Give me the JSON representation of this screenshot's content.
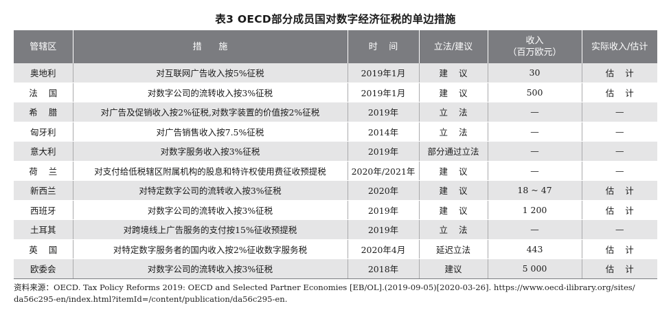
{
  "caption": "表3   OECD部分成员国对数字经济征税的单边措施",
  "headers": {
    "jurisdiction": "管辖区",
    "measure": "措      施",
    "time": "时    间",
    "legislation": "立法/建议",
    "revenue_line1": "收入",
    "revenue_line2": "（百万欧元）",
    "actual": "实际收入/估计"
  },
  "rows": [
    {
      "jurisdiction": "奥地利",
      "measure": "对互联网广告收入按5%征税",
      "time": "2019年1月",
      "legislation": "建    议",
      "revenue": "30",
      "actual": "估    计"
    },
    {
      "jurisdiction": "法    国",
      "measure": "对数字公司的流转收入按3%征税",
      "time": "2019年1月",
      "legislation": "建    议",
      "revenue": "500",
      "actual": "估    计"
    },
    {
      "jurisdiction": "希    腊",
      "measure": "对广告及促销收入按2%征税,对数字装置的价值按2%征税",
      "time": "2019年",
      "legislation": "立    法",
      "revenue": "—",
      "actual": "—"
    },
    {
      "jurisdiction": "匈牙利",
      "measure": "对广告销售收入按7.5%征税",
      "time": "2014年",
      "legislation": "立    法",
      "revenue": "—",
      "actual": "—"
    },
    {
      "jurisdiction": "意大利",
      "measure": "对数字服务收入按3%征税",
      "time": "2019年",
      "legislation": "部分通过立法",
      "revenue": "—",
      "actual": "—"
    },
    {
      "jurisdiction": "荷    兰",
      "measure": "对支付给低税辖区附属机构的股息和特许权使用费征收预提税",
      "time": "2020年/2021年",
      "legislation": "建    议",
      "revenue": "—",
      "actual": "—"
    },
    {
      "jurisdiction": "新西兰",
      "measure": "对特定数字公司的流转收入按3%征税",
      "time": "2020年",
      "legislation": "建    议",
      "revenue": "18 ~ 47",
      "actual": "估    计"
    },
    {
      "jurisdiction": "西班牙",
      "measure": "对数字公司的流转收入按3%征税",
      "time": "2019年",
      "legislation": "建    议",
      "revenue": "1 200",
      "actual": "估    计"
    },
    {
      "jurisdiction": "土耳其",
      "measure": "对跨境线上广告服务的支付按15%征收预提税",
      "time": "2019年",
      "legislation": "立    法",
      "revenue": "—",
      "actual": "—"
    },
    {
      "jurisdiction": "英    国",
      "measure": "对特定数字服务者的国内收入按2%征收数字服务税",
      "time": "2020年4月",
      "legislation": "延迟立法",
      "revenue": "443",
      "actual": "估    计"
    },
    {
      "jurisdiction": "欧委会",
      "measure": "对数字公司的流转收入按3%征税",
      "time": "2018年",
      "legislation": "建议",
      "revenue": "5 000",
      "actual": "估    计"
    }
  ],
  "source_line1": "资料来源：OECD. Tax Policy Reforms 2019: OECD and Selected Partner Economies [EB/OL].(2019-09-05)[2020-03-26]. https://www.oecd-ilibrary.org/sites/",
  "source_line2": "da56c295-en/index.html?itemId=/content/publication/da56c295-en."
}
